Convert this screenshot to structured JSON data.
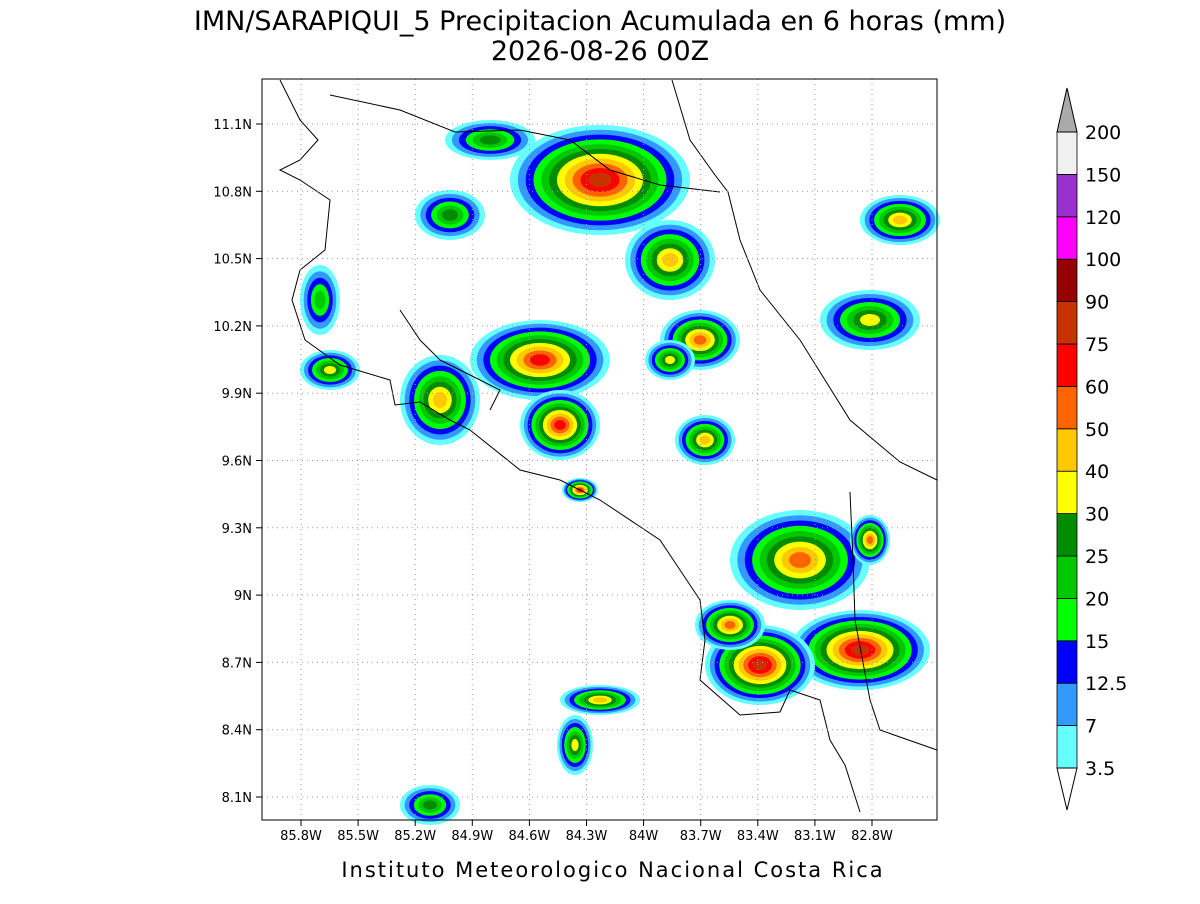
{
  "header": {
    "title": "IMN/SARAPIQUI_5 Precipitacion Acumulada en 6 horas (mm)",
    "subtitle": "2026-08-26 00Z"
  },
  "map": {
    "lat_ticks": [
      {
        "value": 11.1,
        "label": "11.1N"
      },
      {
        "value": 10.8,
        "label": "10.8N"
      },
      {
        "value": 10.5,
        "label": "10.5N"
      },
      {
        "value": 10.2,
        "label": "10.2N"
      },
      {
        "value": 9.9,
        "label": "9.9N"
      },
      {
        "value": 9.6,
        "label": "9.6N"
      },
      {
        "value": 9.3,
        "label": "9.3N"
      },
      {
        "value": 9,
        "label": "9N"
      },
      {
        "value": 8.7,
        "label": "8.7N"
      },
      {
        "value": 8.4,
        "label": "8.4N"
      },
      {
        "value": 8.1,
        "label": "8.1N"
      }
    ],
    "lon_ticks": [
      {
        "value": -85.8,
        "label": "85.8W"
      },
      {
        "value": -85.5,
        "label": "85.5W"
      },
      {
        "value": -85.2,
        "label": "85.2W"
      },
      {
        "value": -84.9,
        "label": "84.9W"
      },
      {
        "value": -84.6,
        "label": "84.6W"
      },
      {
        "value": -84.3,
        "label": "84.3W"
      },
      {
        "value": -84,
        "label": "84W"
      },
      {
        "value": -83.7,
        "label": "83.7W"
      },
      {
        "value": -83.4,
        "label": "83.4W"
      },
      {
        "value": -83.1,
        "label": "83.1W"
      },
      {
        "value": -82.8,
        "label": "82.8W"
      }
    ]
  },
  "colorbar": {
    "levels": [
      3.5,
      7,
      12.5,
      15,
      20,
      25,
      30,
      40,
      50,
      60,
      75,
      90,
      100,
      120,
      150,
      200
    ],
    "colors": [
      "#66ffff",
      "#3399ff",
      "#0000ff",
      "#00ff00",
      "#00c800",
      "#008c00",
      "#ffff00",
      "#ffc800",
      "#ff6400",
      "#ff0000",
      "#c83200",
      "#960000",
      "#ff00ff",
      "#9932cc",
      "#f0f0f0"
    ],
    "under_color": "#ffffff",
    "over_color": "#aaaaaa"
  },
  "footer": "Instituto Meteorologico Nacional Costa Rica"
}
